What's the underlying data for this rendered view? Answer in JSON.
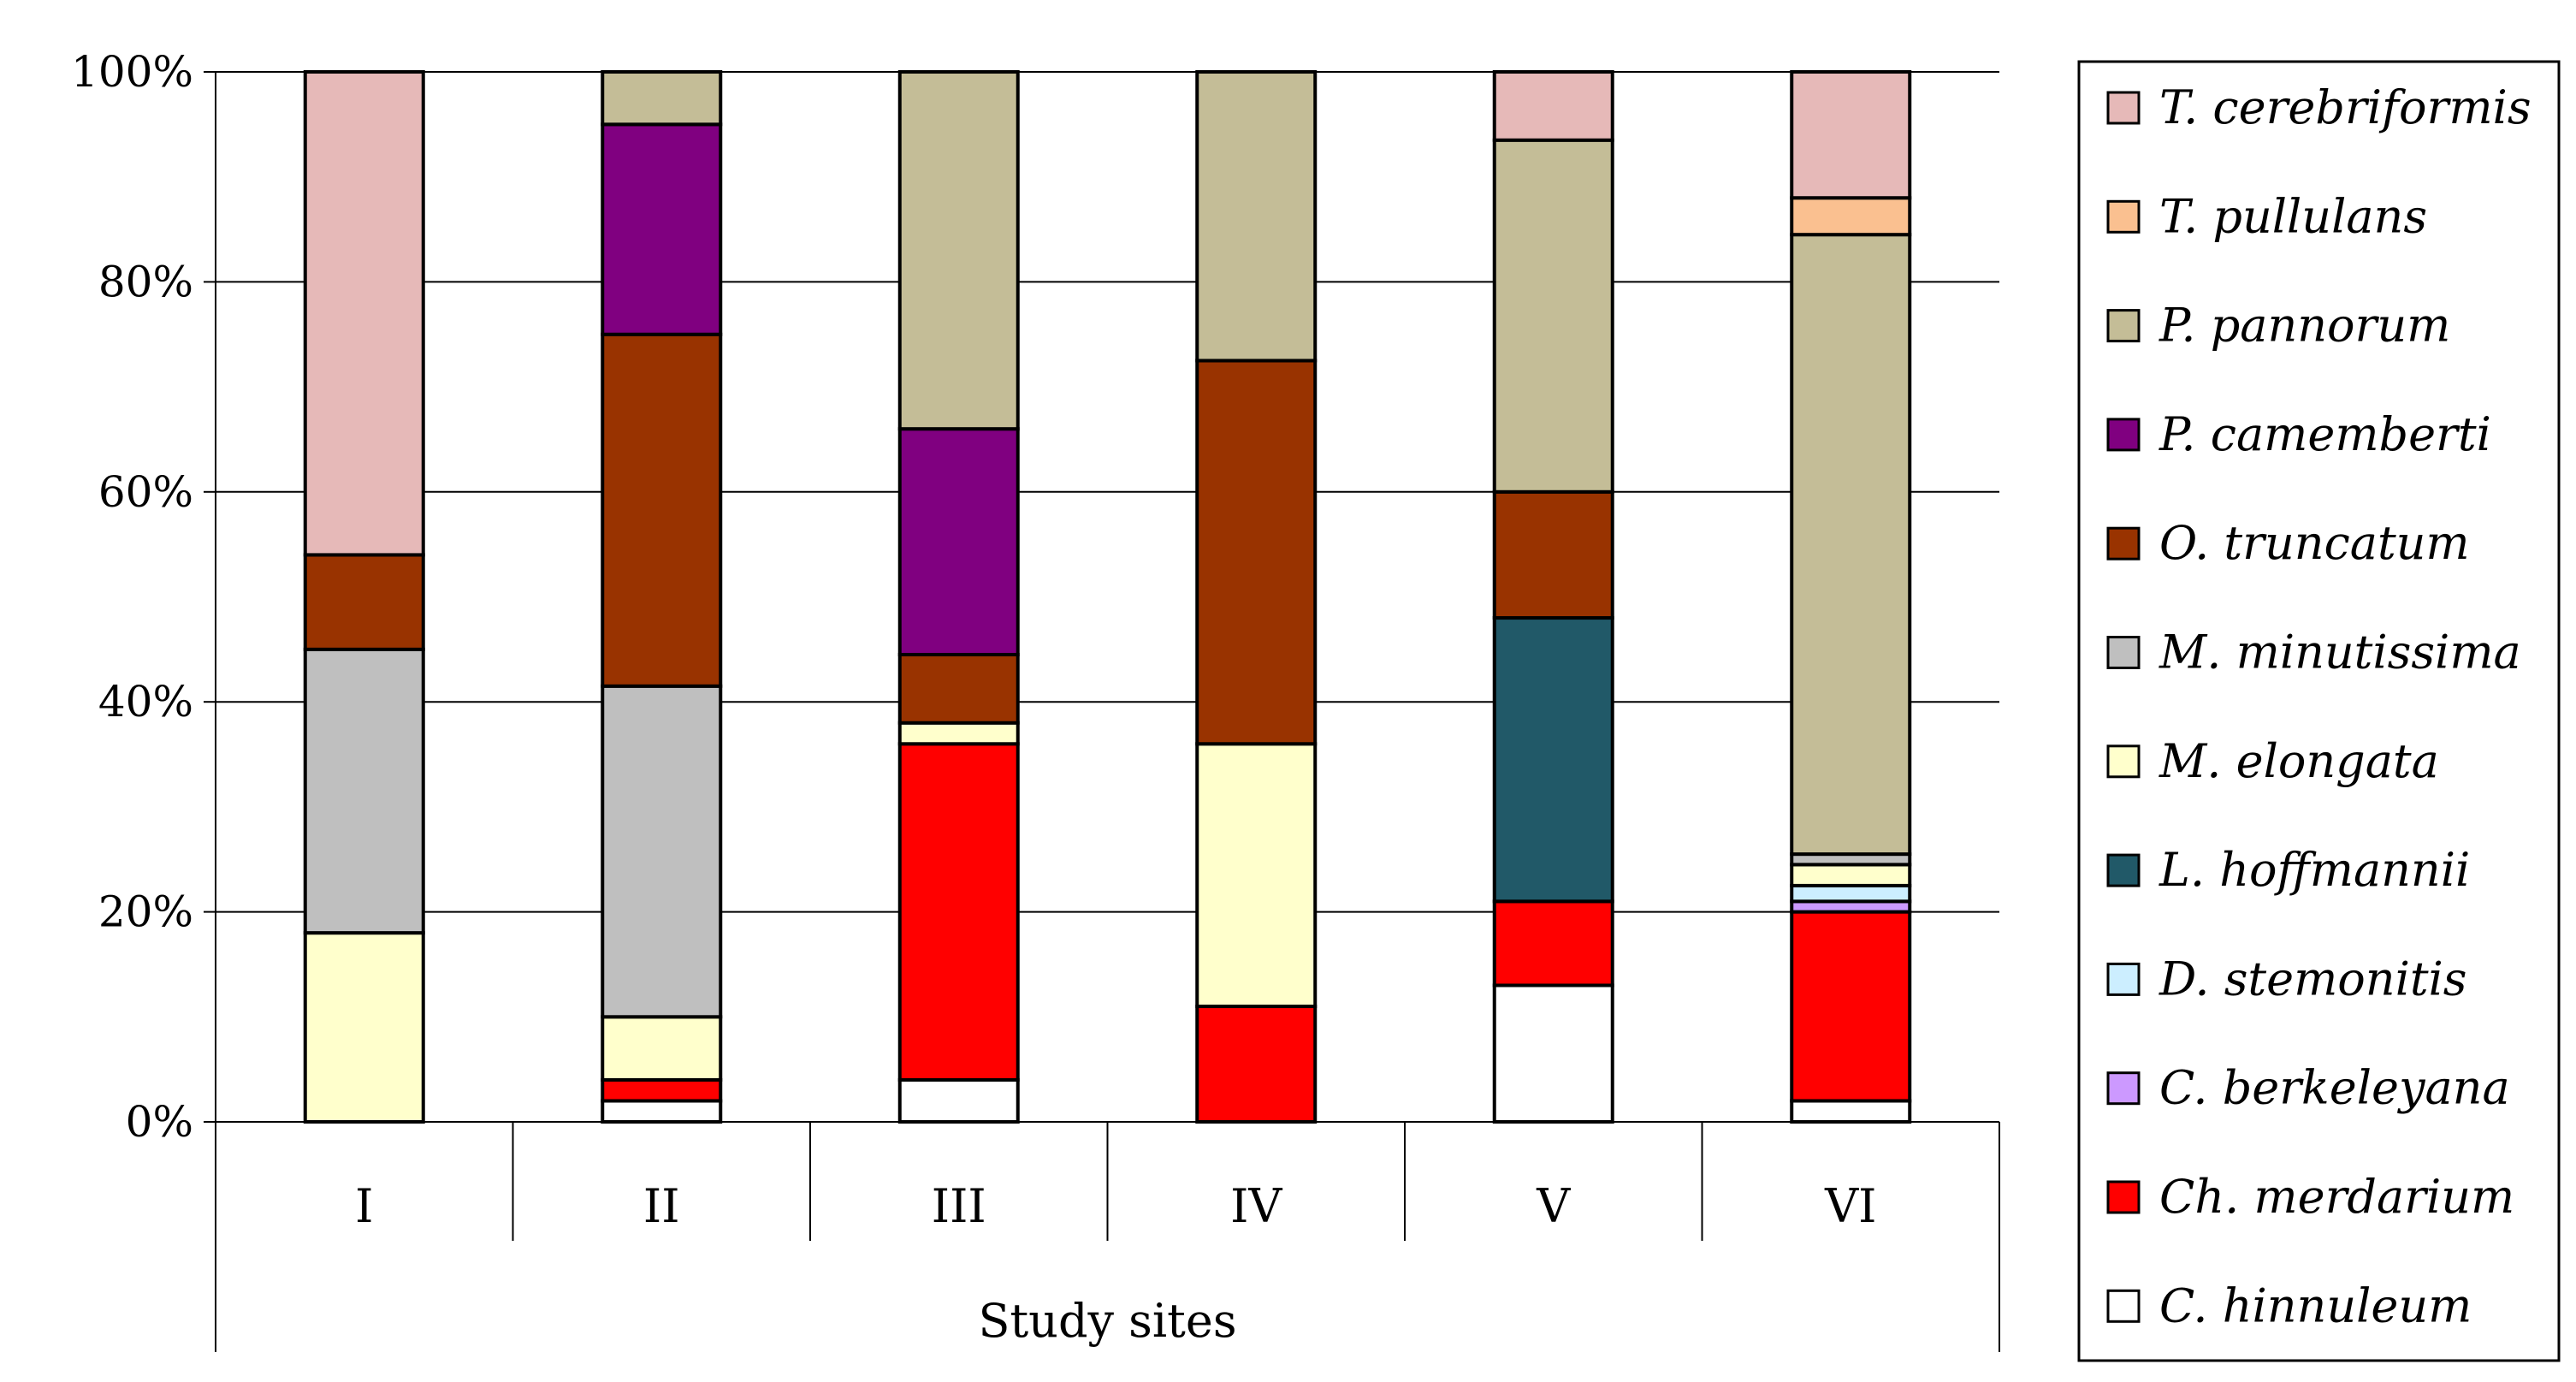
{
  "chart_data": {
    "type": "bar",
    "stacked": true,
    "normalized_percent": true,
    "categories": [
      "I",
      "II",
      "III",
      "IV",
      "V",
      "VI"
    ],
    "xlabel": "Study sites",
    "ylabel": "",
    "ylim": [
      0,
      100
    ],
    "yticks": [
      "0%",
      "20%",
      "40%",
      "60%",
      "80%",
      "100%"
    ],
    "ytick_values": [
      0,
      20,
      40,
      60,
      80,
      100
    ],
    "grid": true,
    "legend_position": "right",
    "series": [
      {
        "name": "C. hinnuleum",
        "color": "#ffffff",
        "values": [
          0,
          2,
          4,
          0,
          13,
          2
        ]
      },
      {
        "name": "Ch. merdarium",
        "color": "#ff0000",
        "values": [
          0,
          2,
          32,
          11,
          8,
          18
        ]
      },
      {
        "name": "C. berkeleyana",
        "color": "#cc99ff",
        "values": [
          0,
          0,
          0,
          0,
          0,
          1
        ]
      },
      {
        "name": "D. stemonitis",
        "color": "#cceeff",
        "values": [
          0,
          0,
          0,
          0,
          0,
          1.5
        ]
      },
      {
        "name": "L. hoffmannii",
        "color": "#215968",
        "values": [
          0,
          0,
          0,
          0,
          27,
          0
        ]
      },
      {
        "name": "M. elongata",
        "color": "#ffffcc",
        "values": [
          18,
          6,
          2,
          25,
          0,
          2
        ]
      },
      {
        "name": "M. minutissima",
        "color": "#bfbfbf",
        "values": [
          27,
          31.5,
          0,
          0,
          0,
          1
        ]
      },
      {
        "name": "O. truncatum",
        "color": "#993300",
        "values": [
          9,
          33.5,
          6.5,
          36.5,
          12,
          0
        ]
      },
      {
        "name": "P. camemberti",
        "color": "#800080",
        "values": [
          0,
          20,
          21.5,
          0,
          0,
          0
        ]
      },
      {
        "name": "P. pannorum",
        "color": "#c4bd97",
        "values": [
          0,
          5,
          34,
          27.5,
          33.5,
          59
        ]
      },
      {
        "name": "T. pullulans",
        "color": "#fac090",
        "values": [
          0,
          0,
          0,
          0,
          0,
          3.5
        ]
      },
      {
        "name": "T. cerebriformis",
        "color": "#e6b9b8",
        "values": [
          46,
          0,
          0,
          0,
          6.5,
          12
        ]
      }
    ]
  }
}
